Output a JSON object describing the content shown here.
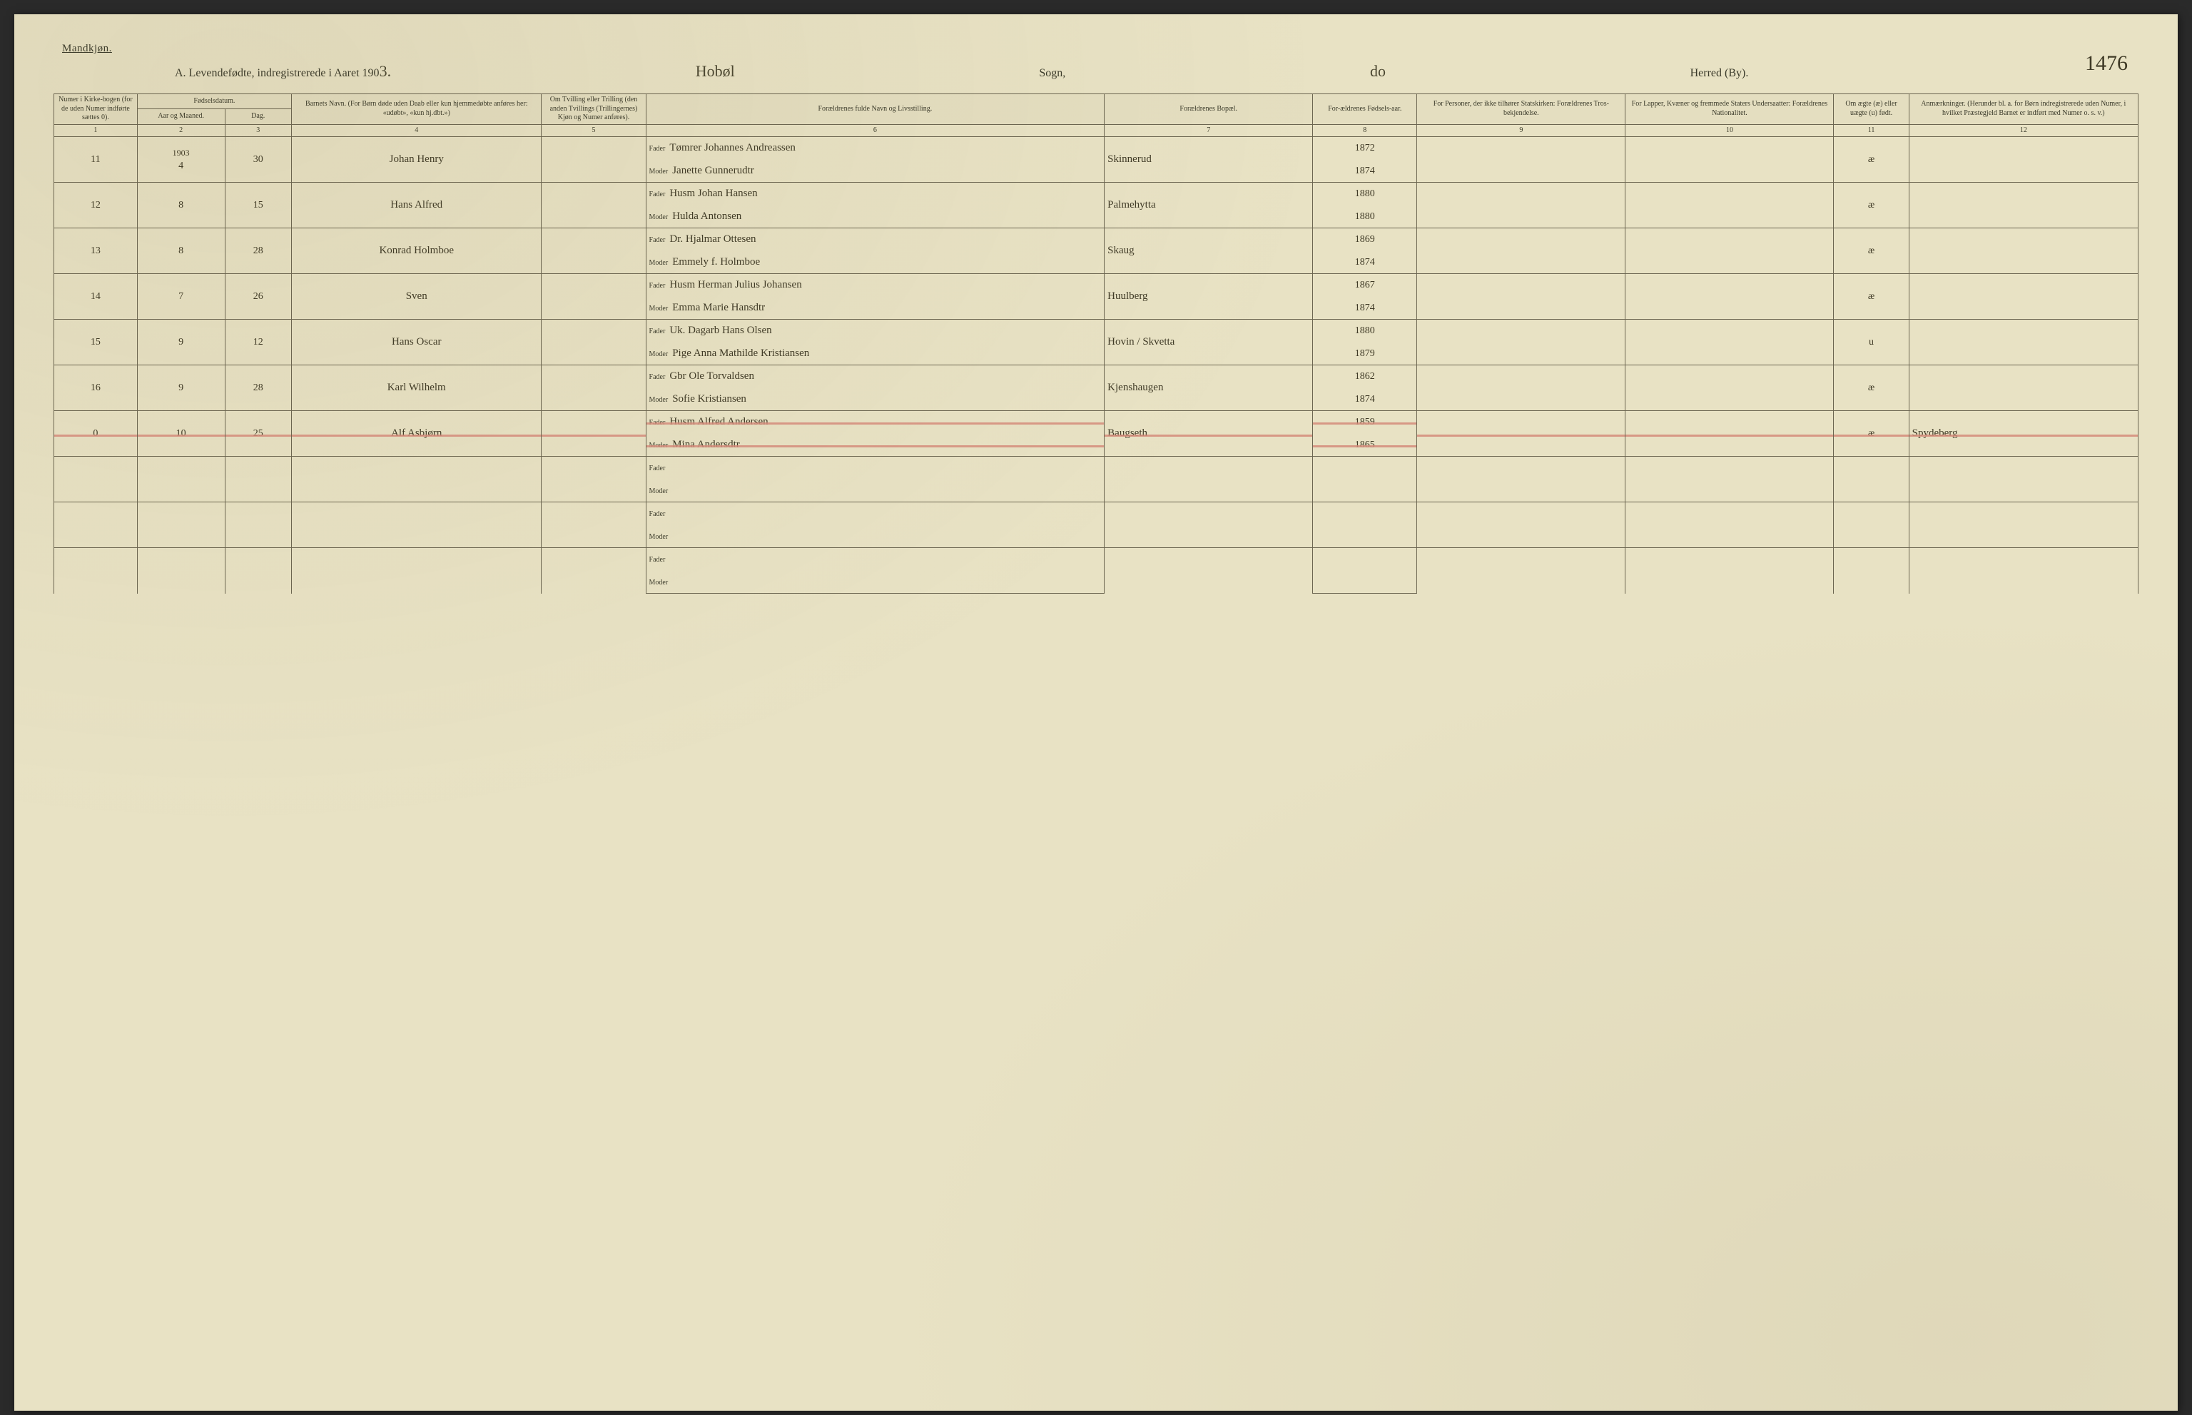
{
  "header": {
    "gender": "Mandkjøn.",
    "titlePrefix": "A.  Levendefødte, indregistrerede i Aaret 190",
    "yearSuffix": "3.",
    "sognLabel": "Sogn,",
    "sognValue": "Hobøl",
    "herredLabel": "Herred (By).",
    "herredValue": "do",
    "pageNumber": "1476"
  },
  "columns": {
    "c1": "Numer i Kirke-bogen (for de uden Numer indførte sættes 0).",
    "c2_group": "Fødselsdatum.",
    "c2a": "Aar og Maaned.",
    "c2b": "Dag.",
    "c4": "Barnets Navn.\n(For Børn døde uden Daab eller kun hjemmedøbte anføres her: «udøbt», «kun hj.dbt.»)",
    "c5": "Om Tvilling eller Trilling (den anden Tvillings (Trillingernes) Kjøn og Numer anføres).",
    "c6": "Forældrenes fulde Navn og Livsstilling.",
    "c7": "Forældrenes Bopæl.",
    "c8": "For-ældrenes Fødsels-aar.",
    "c9": "For Personer, der ikke tilhører Statskirken: Forældrenes Tros-bekjendelse.",
    "c10": "For Lapper, Kvæner og fremmede Staters Undersaatter: Forældrenes Nationalitet.",
    "c11": "Om ægte (æ) eller uægte (u) født.",
    "c12": "Anmærkninger.\n(Herunder bl. a. for Børn indregistrerede uden Numer, i hvilket Præstegjeld Barnet er indført med Numer o. s. v.)"
  },
  "colnums": [
    "1",
    "2",
    "3",
    "4",
    "5",
    "6",
    "7",
    "8",
    "9",
    "10",
    "11",
    "12"
  ],
  "parentLabels": {
    "father": "Fader",
    "mother": "Moder"
  },
  "rows": [
    {
      "num": "11",
      "yearEntry": "1903",
      "month": "4",
      "day": "30",
      "childName": "Johan Henry",
      "father": "Tømrer Johannes Andreassen",
      "mother": "Janette Gunnerudtr",
      "residence": "Skinnerud",
      "fatherYear": "1872",
      "motherYear": "1874",
      "legit": "æ",
      "remarks": ""
    },
    {
      "num": "12",
      "month": "8",
      "day": "15",
      "childName": "Hans Alfred",
      "father": "Husm Johan Hansen",
      "mother": "Hulda Antonsen",
      "residence": "Palmehytta",
      "fatherYear": "1880",
      "motherYear": "1880",
      "legit": "æ",
      "remarks": ""
    },
    {
      "num": "13",
      "month": "8",
      "day": "28",
      "childName": "Konrad Holmboe",
      "father": "Dr. Hjalmar Ottesen",
      "mother": "Emmely f. Holmboe",
      "residence": "Skaug",
      "fatherYear": "1869",
      "motherYear": "1874",
      "legit": "æ",
      "remarks": ""
    },
    {
      "num": "14",
      "month": "7",
      "day": "26",
      "childName": "Sven",
      "father": "Husm Herman Julius Johansen",
      "mother": "Emma Marie Hansdtr",
      "residence": "Huulberg",
      "fatherYear": "1867",
      "motherYear": "1874",
      "legit": "æ",
      "remarks": ""
    },
    {
      "num": "15",
      "month": "9",
      "day": "12",
      "childName": "Hans Oscar",
      "father": "Uk. Dagarb Hans Olsen",
      "mother": "Pige Anna Mathilde Kristiansen",
      "residence": "Hovin / Skvetta",
      "fatherYear": "1880",
      "motherYear": "1879",
      "legit": "u",
      "remarks": ""
    },
    {
      "num": "16",
      "month": "9",
      "day": "28",
      "childName": "Karl Wilhelm",
      "father": "Gbr Ole Torvaldsen",
      "mother": "Sofie Kristiansen",
      "residence": "Kjenshaugen",
      "fatherYear": "1862",
      "motherYear": "1874",
      "legit": "æ",
      "remarks": ""
    },
    {
      "num": "0",
      "month": "10",
      "day": "25",
      "childName": "Alf Asbjørn",
      "father": "Husm Alfred Andersen",
      "mother": "Mina Andersdtr",
      "residence": "Baugseth",
      "fatherYear": "1859",
      "motherYear": "1865",
      "legit": "æ",
      "remarks": "Spydeberg",
      "struck": true
    },
    {
      "empty": true
    },
    {
      "empty": true
    },
    {
      "empty": true
    }
  ],
  "style": {
    "pageBg": "#e8e2c4",
    "ink": "#3a3a2a",
    "handInk": "#3f3a26",
    "rule": "#6b6550",
    "strike": "#d48b7a",
    "widths": {
      "c1": "4%",
      "c2a": "4.2%",
      "c2b": "3.2%",
      "c4": "12%",
      "c5": "5%",
      "c6": "22%",
      "c7": "10%",
      "c8": "5%",
      "c9": "10%",
      "c10": "10%",
      "c11": "3.6%",
      "c12": "11%"
    }
  }
}
